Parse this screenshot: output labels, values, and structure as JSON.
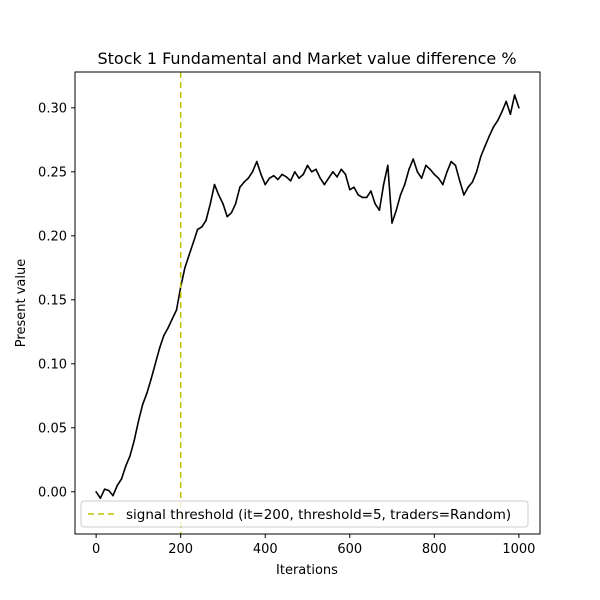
{
  "chart_data": {
    "type": "line",
    "title": "Stock 1 Fundamental and Market value difference %",
    "xlabel": "Iterations",
    "ylabel": "Present value",
    "xlim": [
      -50,
      1050
    ],
    "ylim": [
      -0.033,
      0.328
    ],
    "x_ticks": [
      0,
      200,
      400,
      600,
      800,
      1000
    ],
    "y_ticks": [
      0.0,
      0.05,
      0.1,
      0.15,
      0.2,
      0.25,
      0.3
    ],
    "y_tick_labels": [
      "0.00",
      "0.05",
      "0.10",
      "0.15",
      "0.20",
      "0.25",
      "0.30"
    ],
    "grid": false,
    "legend_position": "lower center",
    "series": [
      {
        "color": "#000000",
        "x": [
          0,
          10,
          20,
          30,
          40,
          50,
          60,
          70,
          80,
          90,
          100,
          110,
          120,
          130,
          140,
          150,
          160,
          170,
          180,
          190,
          200,
          210,
          220,
          230,
          240,
          250,
          260,
          270,
          280,
          290,
          300,
          310,
          320,
          330,
          340,
          350,
          360,
          370,
          380,
          390,
          400,
          410,
          420,
          430,
          440,
          450,
          460,
          470,
          480,
          490,
          500,
          510,
          520,
          530,
          540,
          550,
          560,
          570,
          580,
          590,
          600,
          610,
          620,
          630,
          640,
          650,
          660,
          670,
          680,
          690,
          700,
          710,
          720,
          730,
          740,
          750,
          760,
          770,
          780,
          790,
          800,
          810,
          820,
          830,
          840,
          850,
          860,
          870,
          880,
          890,
          900,
          910,
          920,
          930,
          940,
          950,
          960,
          970,
          980,
          990,
          1000
        ],
        "y": [
          0.0,
          -0.005,
          0.002,
          0.001,
          -0.003,
          0.005,
          0.01,
          0.02,
          0.028,
          0.04,
          0.055,
          0.068,
          0.077,
          0.088,
          0.1,
          0.112,
          0.122,
          0.128,
          0.135,
          0.142,
          0.16,
          0.175,
          0.185,
          0.195,
          0.205,
          0.207,
          0.212,
          0.225,
          0.24,
          0.232,
          0.225,
          0.215,
          0.218,
          0.225,
          0.238,
          0.242,
          0.245,
          0.25,
          0.258,
          0.248,
          0.24,
          0.245,
          0.247,
          0.244,
          0.248,
          0.246,
          0.243,
          0.25,
          0.245,
          0.248,
          0.255,
          0.25,
          0.252,
          0.245,
          0.24,
          0.245,
          0.25,
          0.246,
          0.252,
          0.248,
          0.236,
          0.238,
          0.232,
          0.23,
          0.23,
          0.235,
          0.225,
          0.22,
          0.24,
          0.255,
          0.21,
          0.22,
          0.232,
          0.24,
          0.252,
          0.26,
          0.25,
          0.245,
          0.255,
          0.252,
          0.248,
          0.245,
          0.24,
          0.25,
          0.258,
          0.255,
          0.243,
          0.232,
          0.238,
          0.242,
          0.25,
          0.262,
          0.27,
          0.278,
          0.285,
          0.29,
          0.297,
          0.305,
          0.295,
          0.31,
          0.3
        ]
      }
    ],
    "threshold_line": {
      "x": 200,
      "color": "#bfbf00",
      "legend_label": "signal threshold (it=200, threshold=5, traders=Random)"
    }
  }
}
